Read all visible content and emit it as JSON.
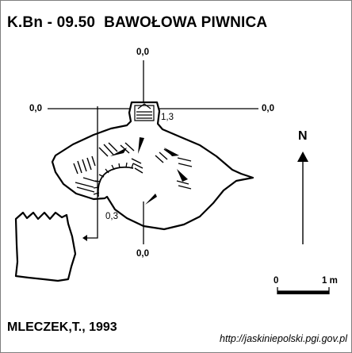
{
  "title": "K.Bn - 09.50  BAWOŁOWA PIWNICA",
  "author": "MLECZEK,T., 1993",
  "source_url": "http://jaskiniepolski.pgi.gov.pl",
  "north_label": "N",
  "scale": {
    "zero_label": "0",
    "end_label": "1 m"
  },
  "section_labels": {
    "top": "0,0",
    "left": "0,0",
    "right": "0,0",
    "bottom": "0,0"
  },
  "height_labels": {
    "entrance": "1,3",
    "lower": "0,3"
  }
}
